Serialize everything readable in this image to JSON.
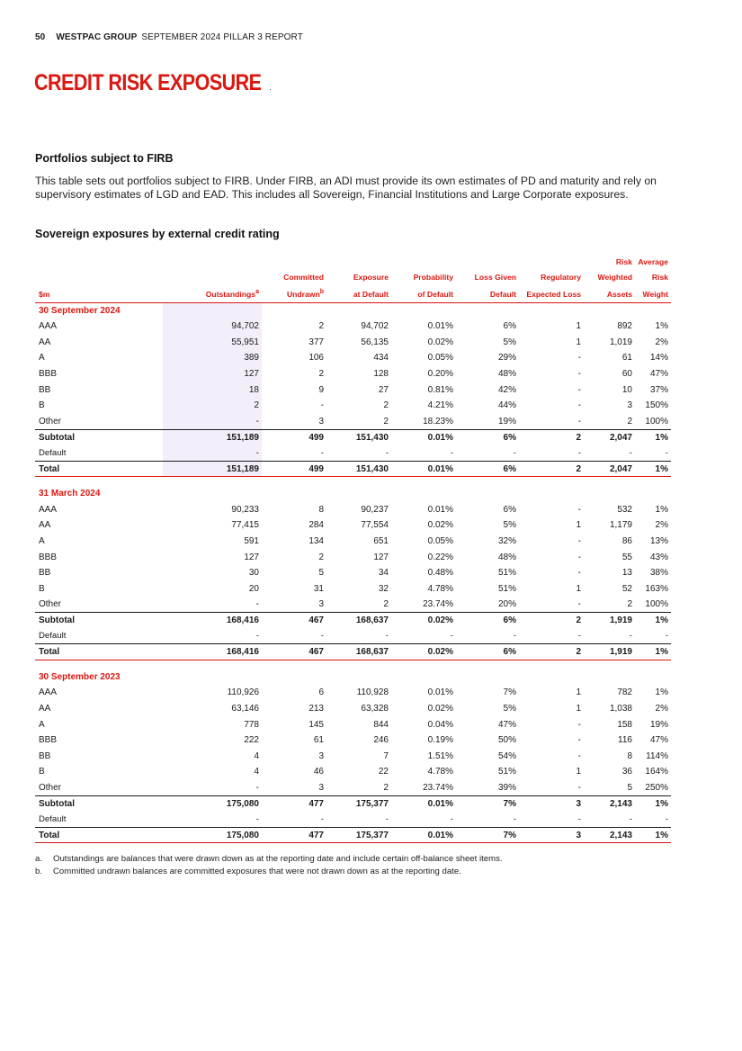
{
  "header": {
    "page_number": "50",
    "brand": "WESTPAC GROUP",
    "report": "SEPTEMBER 2024 PILLAR 3 REPORT"
  },
  "title": "CREDIT RISK EXPOSURE",
  "section_heading": "Portfolios subject to FIRB",
  "intro": "This table sets out portfolios subject to FIRB. Under FIRB, an ADI must provide its own estimates of PD and maturity and rely on supervisory estimates of LGD and EAD. This includes all Sovereign, Financial Institutions and Large Corporate exposures.",
  "table_heading": "Sovereign exposures by external credit rating",
  "columns": {
    "label": "$m",
    "outstandings": "Outstandings",
    "outstandings_note": "a",
    "committed_line1": "Committed",
    "committed_line2": "Undrawn",
    "committed_note": "b",
    "ead_line1": "Exposure",
    "ead_line2": "at Default",
    "pd_line1": "Probability",
    "pd_line2": "of Default",
    "lgd_line1": "Loss Given",
    "lgd_line2": "Default",
    "rel_line1": "Regulatory",
    "rel_line2": "Expected Loss",
    "rwa_line1": "Risk",
    "rwa_line2": "Weighted",
    "rwa_line3": "Assets",
    "arw_line1": "Average",
    "arw_line2": "Risk",
    "arw_line3": "Weight"
  },
  "sections": [
    {
      "heading": "30 September 2024",
      "rows": [
        [
          "AAA",
          "94,702",
          "2",
          "94,702",
          "0.01%",
          "6%",
          "1",
          "892",
          "1%"
        ],
        [
          "AA",
          "55,951",
          "377",
          "56,135",
          "0.02%",
          "5%",
          "1",
          "1,019",
          "2%"
        ],
        [
          "A",
          "389",
          "106",
          "434",
          "0.05%",
          "29%",
          "-",
          "61",
          "14%"
        ],
        [
          "BBB",
          "127",
          "2",
          "128",
          "0.20%",
          "48%",
          "-",
          "60",
          "47%"
        ],
        [
          "BB",
          "18",
          "9",
          "27",
          "0.81%",
          "42%",
          "-",
          "10",
          "37%"
        ],
        [
          "B",
          "2",
          "-",
          "2",
          "4.21%",
          "44%",
          "-",
          "3",
          "150%"
        ],
        [
          "Other",
          "-",
          "3",
          "2",
          "18.23%",
          "19%",
          "-",
          "2",
          "100%"
        ]
      ],
      "subtotal": [
        "Subtotal",
        "151,189",
        "499",
        "151,430",
        "0.01%",
        "6%",
        "2",
        "2,047",
        "1%"
      ],
      "default": [
        "Default",
        "-",
        "-",
        "-",
        "-",
        "-",
        "-",
        "-",
        "-"
      ],
      "total": [
        "Total",
        "151,189",
        "499",
        "151,430",
        "0.01%",
        "6%",
        "2",
        "2,047",
        "1%"
      ]
    },
    {
      "heading": "31 March 2024",
      "rows": [
        [
          "AAA",
          "90,233",
          "8",
          "90,237",
          "0.01%",
          "6%",
          "-",
          "532",
          "1%"
        ],
        [
          "AA",
          "77,415",
          "284",
          "77,554",
          "0.02%",
          "5%",
          "1",
          "1,179",
          "2%"
        ],
        [
          "A",
          "591",
          "134",
          "651",
          "0.05%",
          "32%",
          "-",
          "86",
          "13%"
        ],
        [
          "BBB",
          "127",
          "2",
          "127",
          "0.22%",
          "48%",
          "-",
          "55",
          "43%"
        ],
        [
          "BB",
          "30",
          "5",
          "34",
          "0.48%",
          "51%",
          "-",
          "13",
          "38%"
        ],
        [
          "B",
          "20",
          "31",
          "32",
          "4.78%",
          "51%",
          "1",
          "52",
          "163%"
        ],
        [
          "Other",
          "-",
          "3",
          "2",
          "23.74%",
          "20%",
          "-",
          "2",
          "100%"
        ]
      ],
      "subtotal": [
        "Subtotal",
        "168,416",
        "467",
        "168,637",
        "0.02%",
        "6%",
        "2",
        "1,919",
        "1%"
      ],
      "default": [
        "Default",
        "-",
        "-",
        "-",
        "-",
        "-",
        "-",
        "-",
        "-"
      ],
      "total": [
        "Total",
        "168,416",
        "467",
        "168,637",
        "0.02%",
        "6%",
        "2",
        "1,919",
        "1%"
      ]
    },
    {
      "heading": "30 September 2023",
      "rows": [
        [
          "AAA",
          "110,926",
          "6",
          "110,928",
          "0.01%",
          "7%",
          "1",
          "782",
          "1%"
        ],
        [
          "AA",
          "63,146",
          "213",
          "63,328",
          "0.02%",
          "5%",
          "1",
          "1,038",
          "2%"
        ],
        [
          "A",
          "778",
          "145",
          "844",
          "0.04%",
          "47%",
          "-",
          "158",
          "19%"
        ],
        [
          "BBB",
          "222",
          "61",
          "246",
          "0.19%",
          "50%",
          "-",
          "116",
          "47%"
        ],
        [
          "BB",
          "4",
          "3",
          "7",
          "1.51%",
          "54%",
          "-",
          "8",
          "114%"
        ],
        [
          "B",
          "4",
          "46",
          "22",
          "4.78%",
          "51%",
          "1",
          "36",
          "164%"
        ],
        [
          "Other",
          "-",
          "3",
          "2",
          "23.74%",
          "39%",
          "-",
          "5",
          "250%"
        ]
      ],
      "subtotal": [
        "Subtotal",
        "175,080",
        "477",
        "175,377",
        "0.01%",
        "7%",
        "3",
        "2,143",
        "1%"
      ],
      "default": [
        "Default",
        "-",
        "-",
        "-",
        "-",
        "-",
        "-",
        "-",
        "-"
      ],
      "total": [
        "Total",
        "175,080",
        "477",
        "175,377",
        "0.01%",
        "7%",
        "3",
        "2,143",
        "1%"
      ]
    }
  ],
  "footnotes": [
    {
      "mark": "a.",
      "text": "Outstandings are balances that were drawn down as at the reporting date and include certain off-balance sheet items."
    },
    {
      "mark": "b.",
      "text": "Committed undrawn balances are committed exposures that were not drawn down as at the reporting date."
    }
  ],
  "colors": {
    "accent": "#da1710",
    "shade": "#f3eef9"
  }
}
